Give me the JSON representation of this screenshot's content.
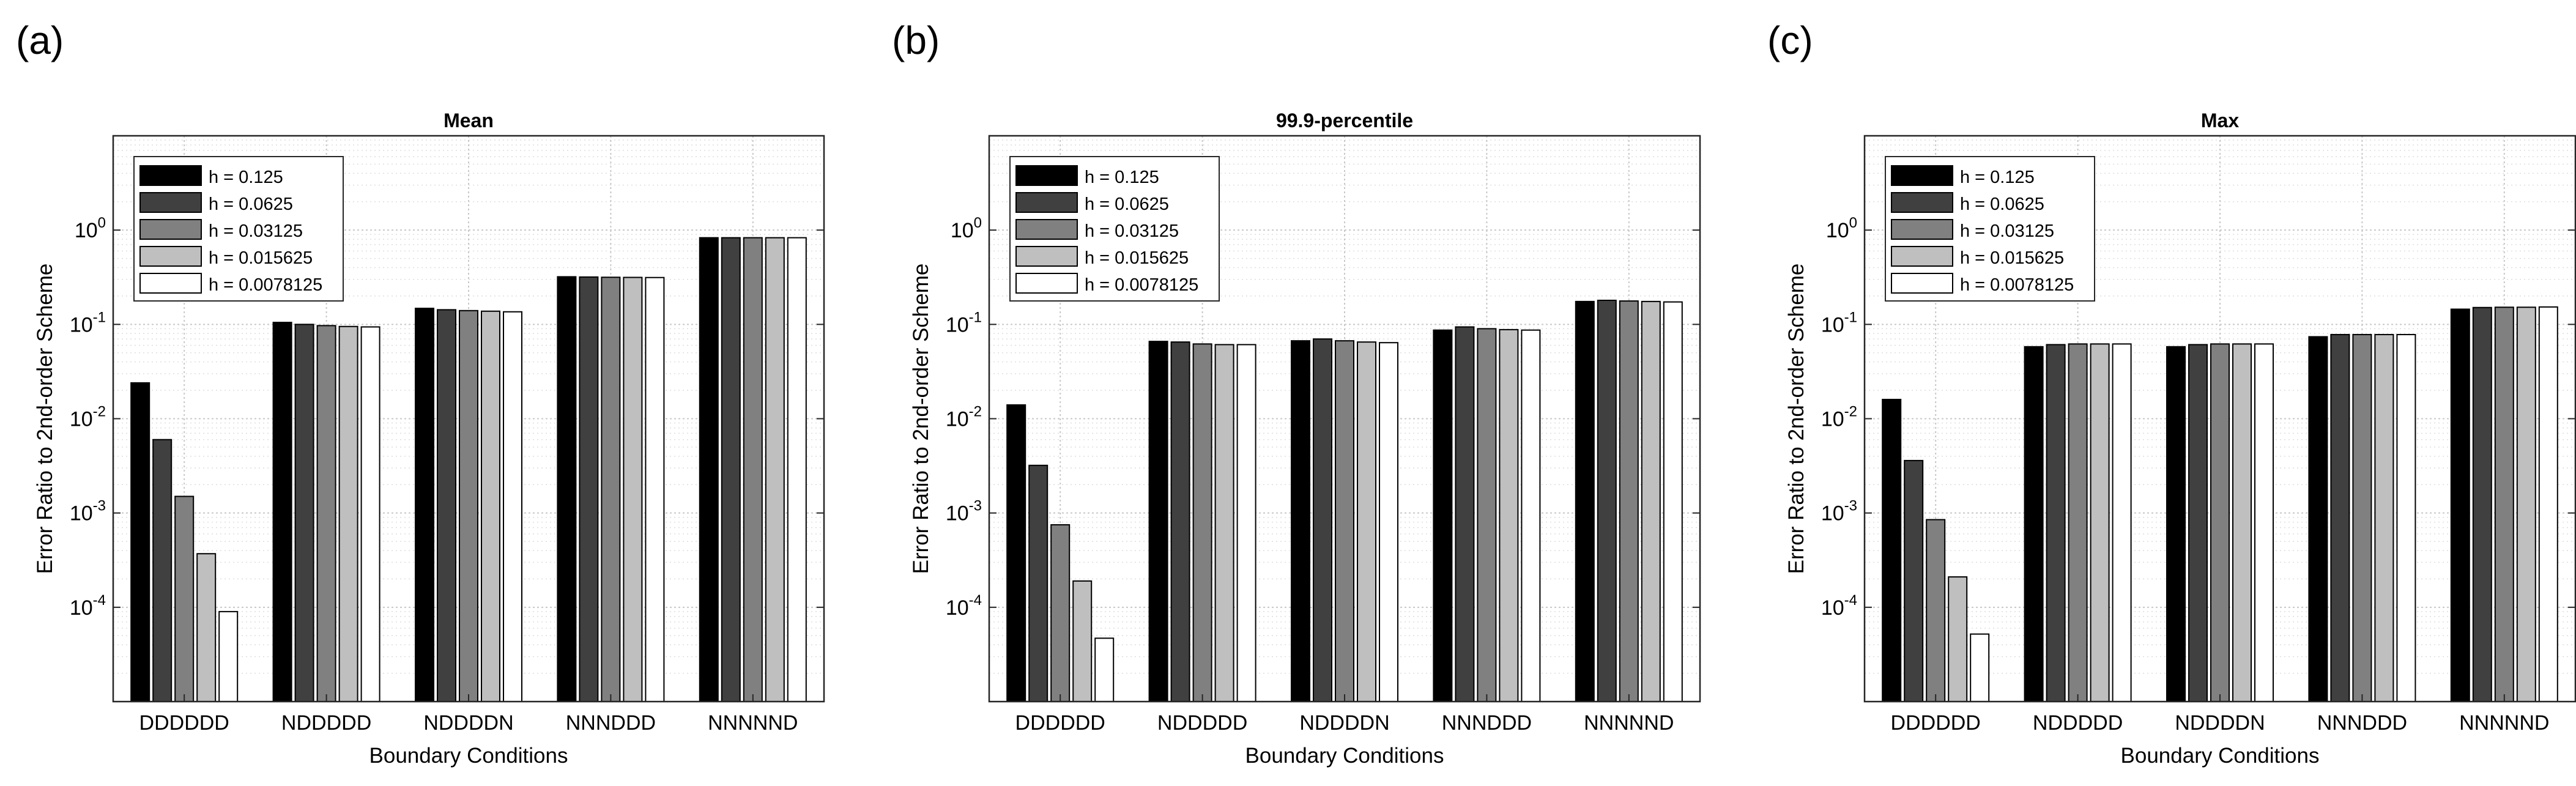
{
  "figure": {
    "colors": {
      "axes": "#262626",
      "grid_major": "#c8c8c8",
      "grid_minor": "#dedede",
      "text": "#000000",
      "background": "#ffffff"
    },
    "legend_location": "top-left"
  },
  "chart_data": [
    {
      "panel_label": "(a)",
      "type": "bar",
      "title": "Mean",
      "xlabel": "Boundary Conditions",
      "ylabel": "Error Ratio to 2nd-order Scheme",
      "yscale": "log",
      "ylim": [
        1e-05,
        10
      ],
      "grid": true,
      "categories": [
        "DDDDDD",
        "NDDDDD",
        "NDDDDN",
        "NNNDDD",
        "NNNNND"
      ],
      "yticks": [
        {
          "value": 0.0001,
          "base": "10",
          "exp": "-4"
        },
        {
          "value": 0.001,
          "base": "10",
          "exp": "-3"
        },
        {
          "value": 0.01,
          "base": "10",
          "exp": "-2"
        },
        {
          "value": 0.1,
          "base": "10",
          "exp": "-1"
        },
        {
          "value": 1,
          "base": "10",
          "exp": "0"
        }
      ],
      "series": [
        {
          "name": "h = 0.125",
          "color": "#000000",
          "values": [
            0.024,
            0.105,
            0.148,
            0.32,
            0.83
          ]
        },
        {
          "name": "h = 0.0625",
          "color": "#404040",
          "values": [
            0.006,
            0.1,
            0.143,
            0.318,
            0.83
          ]
        },
        {
          "name": "h = 0.03125",
          "color": "#808080",
          "values": [
            0.0015,
            0.097,
            0.14,
            0.316,
            0.83
          ]
        },
        {
          "name": "h = 0.015625",
          "color": "#bfbfbf",
          "values": [
            0.00037,
            0.095,
            0.138,
            0.315,
            0.83
          ]
        },
        {
          "name": "h = 0.0078125",
          "color": "#ffffff",
          "values": [
            9e-05,
            0.094,
            0.136,
            0.314,
            0.83
          ]
        }
      ]
    },
    {
      "panel_label": "(b)",
      "type": "bar",
      "title": "99.9-percentile",
      "xlabel": "Boundary Conditions",
      "ylabel": "Error Ratio to 2nd-order Scheme",
      "yscale": "log",
      "ylim": [
        1e-05,
        10
      ],
      "grid": true,
      "categories": [
        "DDDDDD",
        "NDDDDD",
        "NDDDDN",
        "NNNDDD",
        "NNNNND"
      ],
      "yticks": [
        {
          "value": 0.0001,
          "base": "10",
          "exp": "-4"
        },
        {
          "value": 0.001,
          "base": "10",
          "exp": "-3"
        },
        {
          "value": 0.01,
          "base": "10",
          "exp": "-2"
        },
        {
          "value": 0.1,
          "base": "10",
          "exp": "-1"
        },
        {
          "value": 1,
          "base": "10",
          "exp": "0"
        }
      ],
      "series": [
        {
          "name": "h = 0.125",
          "color": "#000000",
          "values": [
            0.014,
            0.066,
            0.067,
            0.087,
            0.175
          ]
        },
        {
          "name": "h = 0.0625",
          "color": "#404040",
          "values": [
            0.0032,
            0.065,
            0.07,
            0.094,
            0.18
          ]
        },
        {
          "name": "h = 0.03125",
          "color": "#808080",
          "values": [
            0.00075,
            0.062,
            0.067,
            0.09,
            0.177
          ]
        },
        {
          "name": "h = 0.015625",
          "color": "#bfbfbf",
          "values": [
            0.00019,
            0.061,
            0.065,
            0.088,
            0.175
          ]
        },
        {
          "name": "h = 0.0078125",
          "color": "#ffffff",
          "values": [
            4.7e-05,
            0.061,
            0.064,
            0.087,
            0.173
          ]
        }
      ]
    },
    {
      "panel_label": "(c)",
      "type": "bar",
      "title": "Max",
      "xlabel": "Boundary Conditions",
      "ylabel": "Error Ratio to 2nd-order Scheme",
      "yscale": "log",
      "ylim": [
        1e-05,
        10
      ],
      "grid": true,
      "categories": [
        "DDDDDD",
        "NDDDDD",
        "NDDDDN",
        "NNNDDD",
        "NNNNND"
      ],
      "yticks": [
        {
          "value": 0.0001,
          "base": "10",
          "exp": "-4"
        },
        {
          "value": 0.001,
          "base": "10",
          "exp": "-3"
        },
        {
          "value": 0.01,
          "base": "10",
          "exp": "-2"
        },
        {
          "value": 0.1,
          "base": "10",
          "exp": "-1"
        },
        {
          "value": 1,
          "base": "10",
          "exp": "0"
        }
      ],
      "series": [
        {
          "name": "h = 0.125",
          "color": "#000000",
          "values": [
            0.016,
            0.058,
            0.058,
            0.074,
            0.145
          ]
        },
        {
          "name": "h = 0.0625",
          "color": "#404040",
          "values": [
            0.0036,
            0.061,
            0.061,
            0.078,
            0.151
          ]
        },
        {
          "name": "h = 0.03125",
          "color": "#808080",
          "values": [
            0.00085,
            0.062,
            0.062,
            0.078,
            0.152
          ]
        },
        {
          "name": "h = 0.015625",
          "color": "#bfbfbf",
          "values": [
            0.00021,
            0.062,
            0.062,
            0.078,
            0.152
          ]
        },
        {
          "name": "h = 0.0078125",
          "color": "#ffffff",
          "values": [
            5.2e-05,
            0.062,
            0.062,
            0.078,
            0.153
          ]
        }
      ]
    }
  ]
}
